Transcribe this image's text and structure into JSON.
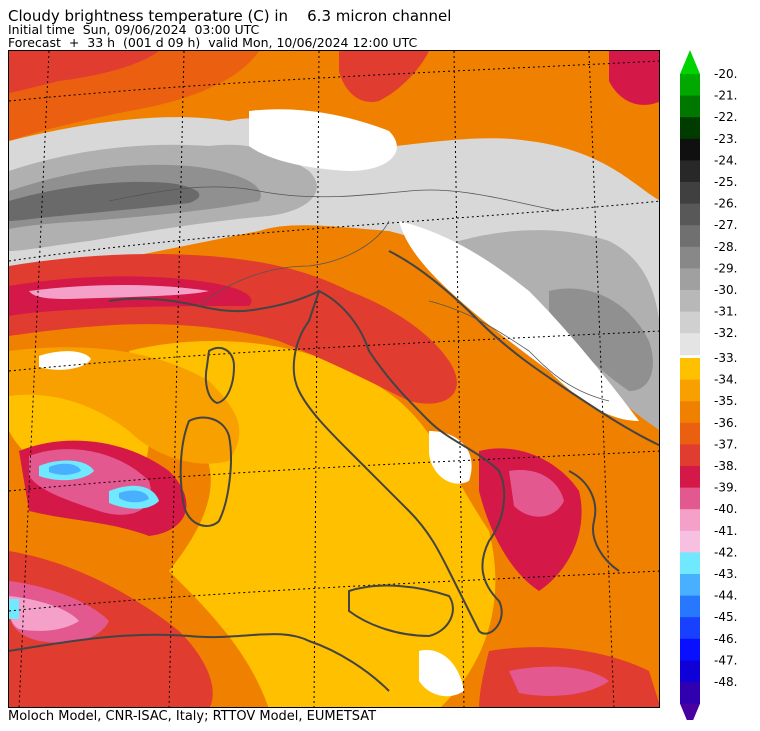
{
  "header": {
    "title": "Cloudy brightness temperature (C) in    6.3 micron channel",
    "initial_time": "Initial time  Sun, 09/06/2024  03:00 UTC",
    "forecast": "Forecast  +  33 h  (001 d 09 h)  valid Mon, 10/06/2024 12:00 UTC"
  },
  "footer": {
    "credit": "Moloch Model, CNR-ISAC, Italy; RTTOV Model, EUMETSAT"
  },
  "colorbar": {
    "upper_labels": [
      "-20.",
      "-21.",
      "-22.",
      "-23.",
      "-24.",
      "-25.",
      "-26.",
      "-27.",
      "-28.",
      "-29.",
      "-30.",
      "-31.",
      "-32."
    ],
    "upper_colors": [
      "#00d400",
      "#00a800",
      "#007800",
      "#003c00",
      "#101010",
      "#282828",
      "#404040",
      "#585858",
      "#707070",
      "#888888",
      "#a0a0a0",
      "#b8b8b8",
      "#d0d0d0",
      "#e4e4e4"
    ],
    "lower_labels": [
      "-33.",
      "-34.",
      "-35.",
      "-36.",
      "-37.",
      "-38.",
      "-39.",
      "-40.",
      "-41.",
      "-42.",
      "-43.",
      "-44.",
      "-45.",
      "-46.",
      "-47.",
      "-48."
    ],
    "lower_colors": [
      "#ffc000",
      "#f8a000",
      "#f08000",
      "#ea6010",
      "#e03c30",
      "#d41848",
      "#e45890",
      "#f4a0c8",
      "#f8c0e0",
      "#70e8ff",
      "#48b0ff",
      "#2878ff",
      "#1840ff",
      "#0810ff",
      "#1000d8",
      "#3000b0",
      "#4800a0"
    ]
  },
  "map": {
    "palette": {
      "yellow": "#ffc000",
      "light_orange": "#f8a000",
      "orange": "#f08000",
      "dark_orange": "#ea6010",
      "red": "#e03c30",
      "crimson": "#d41848",
      "pink": "#e45890",
      "light_pink": "#f4a0c8",
      "cyan": "#70e8ff",
      "blue": "#48b0ff",
      "white": "#ffffff",
      "light_grey": "#d8d8d8",
      "grey": "#b0b0b0",
      "mid_grey": "#909090",
      "dark_grey": "#6a6a6a",
      "coast": "#444444"
    }
  }
}
